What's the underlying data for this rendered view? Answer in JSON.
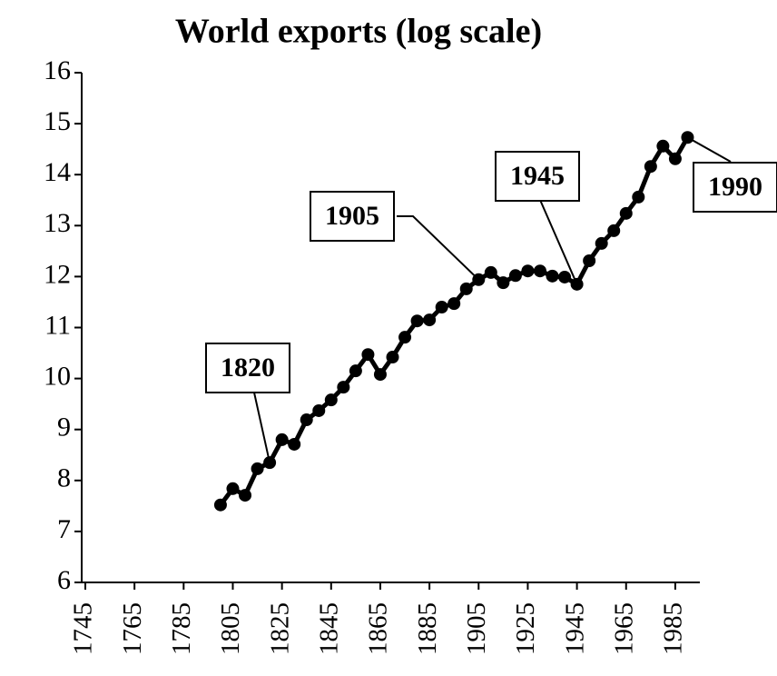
{
  "chart_data": {
    "type": "line",
    "title": "World exports (log scale)",
    "x": [
      1800,
      1805,
      1810,
      1815,
      1820,
      1825,
      1830,
      1835,
      1840,
      1845,
      1850,
      1855,
      1860,
      1865,
      1870,
      1875,
      1880,
      1885,
      1890,
      1895,
      1900,
      1905,
      1910,
      1915,
      1920,
      1925,
      1930,
      1935,
      1940,
      1945,
      1950,
      1955,
      1960,
      1965,
      1970,
      1975,
      1980,
      1985,
      1990
    ],
    "series": [
      {
        "name": "World exports",
        "color": "#000000",
        "values": [
          7.52,
          7.84,
          7.71,
          8.23,
          8.35,
          8.8,
          8.71,
          9.19,
          9.37,
          9.58,
          9.83,
          10.15,
          10.47,
          10.08,
          10.42,
          10.81,
          11.13,
          11.15,
          11.4,
          11.47,
          11.76,
          11.94,
          12.08,
          11.88,
          12.02,
          12.11,
          12.11,
          12.01,
          11.99,
          11.85,
          12.31,
          12.65,
          12.9,
          13.24,
          13.56,
          14.16,
          14.56,
          14.31,
          14.73
        ]
      }
    ],
    "xlim": [
      1745,
      1995
    ],
    "xticks": [
      1745,
      1765,
      1785,
      1805,
      1825,
      1845,
      1865,
      1885,
      1905,
      1925,
      1945,
      1965,
      1985
    ],
    "ylim": [
      6,
      16
    ],
    "yticks": [
      6,
      7,
      8,
      9,
      10,
      11,
      12,
      13,
      14,
      15,
      16
    ],
    "annotations": [
      {
        "label": "1820",
        "x": 1820
      },
      {
        "label": "1905",
        "x": 1905
      },
      {
        "label": "1945",
        "x": 1945
      },
      {
        "label": "1990",
        "x": 1990
      }
    ]
  }
}
